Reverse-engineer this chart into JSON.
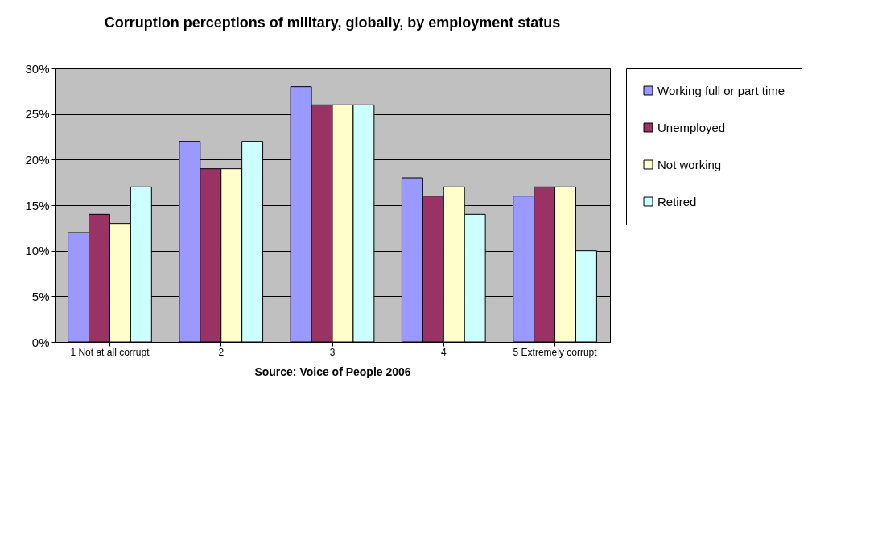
{
  "chart_data": {
    "type": "bar",
    "title": "Corruption perceptions of military, globally, by employment status",
    "xlabel": "Source: Voice of People 2006",
    "categories": [
      "1 Not at all corrupt",
      "2",
      "3",
      "4",
      "5 Extremely corrupt"
    ],
    "series": [
      {
        "name": "Working full or part time",
        "color": "#9999ff",
        "values": [
          12,
          22,
          28,
          18,
          16
        ]
      },
      {
        "name": "Unemployed",
        "color": "#993366",
        "values": [
          14,
          19,
          26,
          16,
          17
        ]
      },
      {
        "name": "Not working",
        "color": "#ffffcc",
        "values": [
          13,
          19,
          26,
          17,
          17
        ]
      },
      {
        "name": "Retired",
        "color": "#ccffff",
        "values": [
          17,
          22,
          26,
          14,
          10
        ]
      }
    ],
    "ylim": [
      0,
      30
    ],
    "yticks": [
      {
        "value": 0,
        "label": "0%"
      },
      {
        "value": 5,
        "label": "5%"
      },
      {
        "value": 10,
        "label": "10%"
      },
      {
        "value": 15,
        "label": "15%"
      },
      {
        "value": 20,
        "label": "20%"
      },
      {
        "value": 25,
        "label": "25%"
      },
      {
        "value": 30,
        "label": "30%"
      }
    ],
    "grid": true,
    "legend": "right"
  }
}
